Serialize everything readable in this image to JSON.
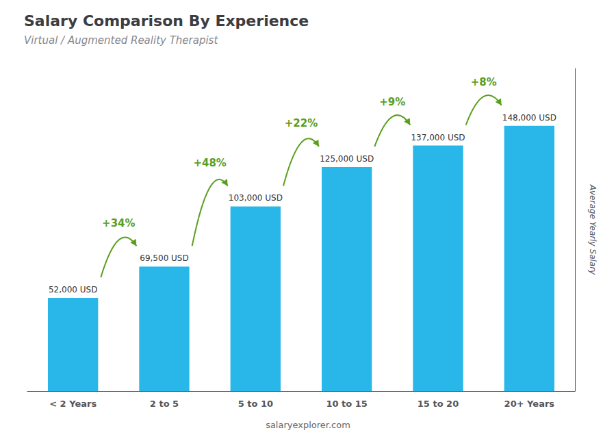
{
  "chart_data": {
    "type": "bar",
    "title": "Salary Comparison By Experience",
    "subtitle": "Virtual / Augmented Reality Therapist",
    "categories": [
      "< 2 Years",
      "2 to 5",
      "5 to 10",
      "10 to 15",
      "15 to 20",
      "20+ Years"
    ],
    "values": [
      52000,
      69500,
      103000,
      125000,
      137000,
      148000
    ],
    "value_labels": [
      "52,000 USD",
      "69,500 USD",
      "103,000 USD",
      "125,000 USD",
      "137,000 USD",
      "148,000 USD"
    ],
    "data_labels": true,
    "annotations": [
      "+34%",
      "+48%",
      "+22%",
      "+9%",
      "+8%"
    ],
    "ylabel": "Average Yearly Salary",
    "footer": "salaryexplorer.com",
    "color": "#29b6e8",
    "ylim": [
      0,
      180000
    ],
    "grid": false,
    "tick_labels": "x"
  }
}
